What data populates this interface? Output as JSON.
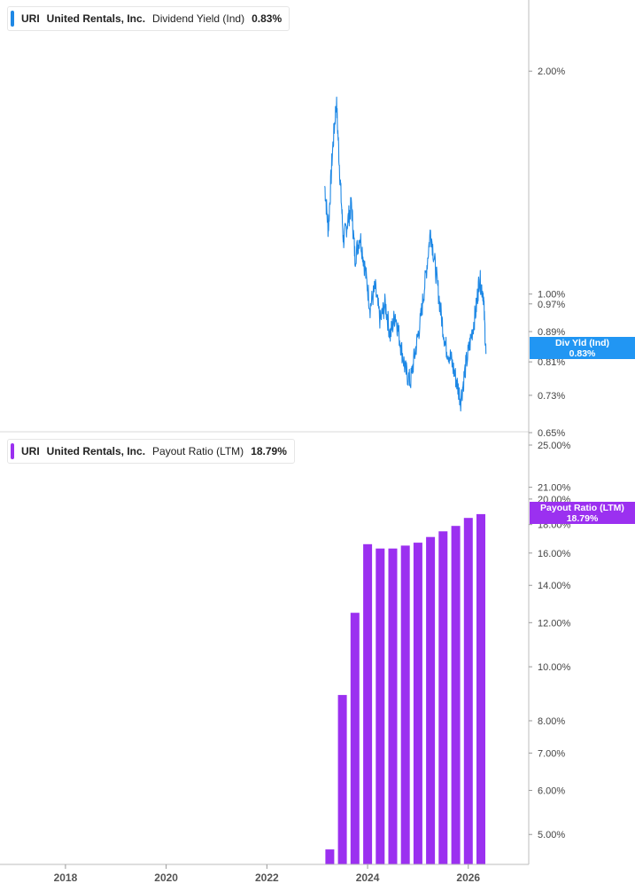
{
  "legends": {
    "top": {
      "ticker": "URI",
      "company": "United Rentals, Inc.",
      "metric": "Dividend Yield (Ind)",
      "value": "0.83%",
      "color": "#1e88e5"
    },
    "bottom": {
      "ticker": "URI",
      "company": "United Rentals, Inc.",
      "metric": "Payout Ratio (LTM)",
      "value": "18.79%",
      "color": "#9b30f0"
    }
  },
  "tags": {
    "top": {
      "line1": "Div Yld (Ind)",
      "line2": "0.83%",
      "color": "#2196f3"
    },
    "bottom": {
      "line1": "Payout Ratio (LTM)",
      "line2": "18.79%",
      "color": "#9b30f0"
    }
  },
  "chart_data": [
    {
      "type": "line",
      "scale": "log",
      "ylim": [
        0.65,
        2.15
      ],
      "yticks": [
        2.0,
        1.0,
        0.97,
        0.89,
        0.81,
        0.73,
        0.65
      ],
      "ytick_labels": [
        "2.00%",
        "1.00%",
        "0.97%",
        "0.89%",
        "0.81%",
        "0.73%",
        "0.65%"
      ],
      "xlim": [
        2016.7,
        2027.2
      ],
      "xticks": [
        2018,
        2020,
        2022,
        2024,
        2026
      ],
      "series": [
        {
          "color": "#1e88e5",
          "x": [
            2023.15,
            2023.22,
            2023.3,
            2023.38,
            2023.45,
            2023.52,
            2023.6,
            2023.68,
            2023.75,
            2023.85,
            2023.95,
            2024.05,
            2024.15,
            2024.25,
            2024.35,
            2024.45,
            2024.55,
            2024.65,
            2024.75,
            2024.85,
            2024.95,
            2025.05,
            2025.15,
            2025.25,
            2025.35,
            2025.45,
            2025.55,
            2025.65,
            2025.75,
            2025.85,
            2025.95,
            2026.05,
            2026.15,
            2026.22,
            2026.3,
            2026.35
          ],
          "y": [
            1.4,
            1.22,
            1.55,
            1.82,
            1.45,
            1.18,
            1.25,
            1.32,
            1.12,
            1.2,
            1.08,
            0.96,
            1.02,
            0.92,
            0.97,
            0.88,
            0.94,
            0.86,
            0.79,
            0.76,
            0.84,
            0.92,
            1.05,
            1.22,
            1.08,
            0.95,
            0.85,
            0.82,
            0.77,
            0.72,
            0.8,
            0.87,
            0.95,
            1.05,
            1.0,
            0.83
          ]
        }
      ]
    },
    {
      "type": "bar",
      "scale": "log",
      "ylim": [
        4.5,
        25.0
      ],
      "yticks": [
        25.0,
        21.0,
        20.0,
        18.0,
        16.0,
        14.0,
        12.0,
        10.0,
        8.0,
        7.0,
        6.0,
        5.0
      ],
      "ytick_labels": [
        "25.00%",
        "21.00%",
        "20.00%",
        "18.00%",
        "16.00%",
        "14.00%",
        "12.00%",
        "10.00%",
        "8.00%",
        "7.00%",
        "6.00%",
        "5.00%"
      ],
      "xlim": [
        2016.7,
        2027.2
      ],
      "xticks": [
        2018,
        2020,
        2022,
        2024,
        2026
      ],
      "xtick_labels": [
        "2018",
        "2020",
        "2022",
        "2024",
        "2026"
      ],
      "x": [
        2023.25,
        2023.5,
        2023.75,
        2024.0,
        2024.25,
        2024.5,
        2024.75,
        2025.0,
        2025.25,
        2025.5,
        2025.75,
        2026.0,
        2026.25
      ],
      "series": [
        {
          "color": "#9b30f0",
          "values": [
            4.7,
            8.9,
            12.5,
            16.6,
            16.3,
            16.3,
            16.5,
            16.7,
            17.1,
            17.5,
            17.9,
            18.5,
            18.79
          ]
        }
      ]
    }
  ]
}
